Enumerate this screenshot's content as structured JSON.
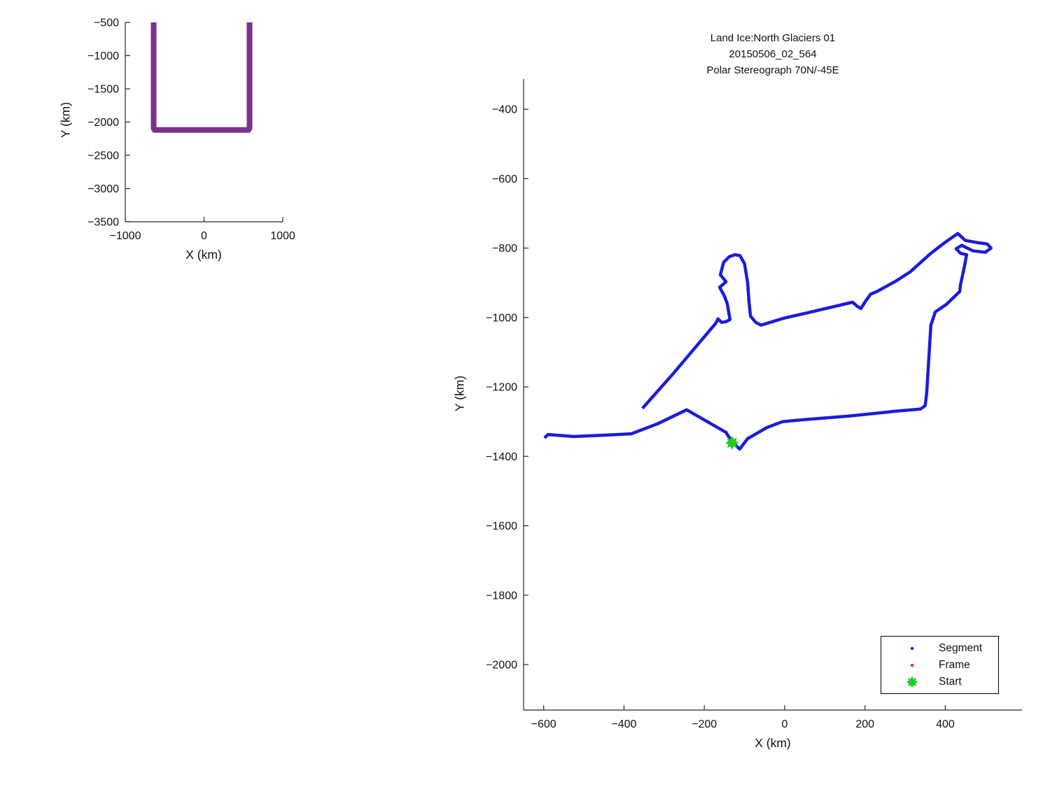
{
  "figure": {
    "background": "#ffffff",
    "spine_color": "#262626",
    "text_color": "#111111"
  },
  "chart_data": [
    {
      "id": "inset",
      "type": "line",
      "title": "",
      "xlabel": "X (km)",
      "ylabel": "Y (km)",
      "xlim": [
        -1000,
        1000
      ],
      "ylim": [
        -3500,
        -500
      ],
      "xticks": [
        -1000,
        0,
        1000
      ],
      "yticks": [
        -500,
        -1000,
        -1500,
        -2000,
        -2500,
        -3000,
        -3500
      ],
      "grid": false,
      "legend": null,
      "series": [
        {
          "name": "flight-track-overview",
          "color": "#7B2F8E",
          "line_width": 8,
          "points": [
            [
              -640,
              -500
            ],
            [
              -640,
              -2095
            ],
            [
              -629,
              -2119
            ],
            [
              564,
              -2119
            ],
            [
              578,
              -2093
            ],
            [
              578,
              -500
            ]
          ]
        }
      ]
    },
    {
      "id": "main",
      "type": "line",
      "title_lines": [
        "Land Ice:North Glaciers 01",
        "20150506_02_564",
        "Polar Stereograph 70N/-45E"
      ],
      "xlabel": "X (km)",
      "ylabel": "Y (km)",
      "xlim": [
        -650,
        591
      ],
      "ylim": [
        -2131,
        -313
      ],
      "xticks": [
        -600,
        -400,
        -200,
        0,
        200,
        400
      ],
      "yticks": [
        -400,
        -600,
        -800,
        -1000,
        -1200,
        -1400,
        -1600,
        -1800,
        -2000
      ],
      "grid": false,
      "legend": {
        "position": "southeast",
        "entries": [
          {
            "label": "Segment",
            "marker": "dot",
            "color": "#1C1CD8"
          },
          {
            "label": "Frame",
            "marker": "dot",
            "color": "#E82222"
          },
          {
            "label": "Start",
            "marker": "star",
            "color": "#1FCE1F"
          }
        ]
      },
      "series": [
        {
          "name": "segment-track",
          "color": "#1C1CD8",
          "line_width": 4.5,
          "points": [
            [
              -354,
              -1262
            ],
            [
              -277,
              -1161
            ],
            [
              -171,
              -1016
            ],
            [
              -166,
              -1004
            ],
            [
              -157,
              -1014
            ],
            [
              -146,
              -1012
            ],
            [
              -136,
              -1006
            ],
            [
              -143,
              -960
            ],
            [
              -150,
              -938
            ],
            [
              -162,
              -913
            ],
            [
              -146,
              -897
            ],
            [
              -160,
              -877
            ],
            [
              -152,
              -841
            ],
            [
              -138,
              -825
            ],
            [
              -124,
              -819
            ],
            [
              -111,
              -822
            ],
            [
              -100,
              -845
            ],
            [
              -92,
              -900
            ],
            [
              -89,
              -952
            ],
            [
              -85,
              -996
            ],
            [
              -72,
              -1014
            ],
            [
              -59,
              -1022
            ],
            [
              -2,
              -1002
            ],
            [
              51,
              -988
            ],
            [
              169,
              -956
            ],
            [
              181,
              -968
            ],
            [
              190,
              -974
            ],
            [
              201,
              -954
            ],
            [
              214,
              -933
            ],
            [
              230,
              -925
            ],
            [
              277,
              -895
            ],
            [
              312,
              -869
            ],
            [
              364,
              -815
            ],
            [
              399,
              -784
            ],
            [
              431,
              -758
            ],
            [
              450,
              -778
            ],
            [
              479,
              -784
            ],
            [
              504,
              -788
            ],
            [
              514,
              -800
            ],
            [
              500,
              -812
            ],
            [
              469,
              -808
            ],
            [
              441,
              -792
            ],
            [
              427,
              -802
            ],
            [
              438,
              -815
            ],
            [
              453,
              -819
            ],
            [
              448,
              -851
            ],
            [
              438,
              -905
            ],
            [
              436,
              -925
            ],
            [
              403,
              -962
            ],
            [
              375,
              -984
            ],
            [
              364,
              -1022
            ],
            [
              354,
              -1214
            ],
            [
              350,
              -1254
            ],
            [
              338,
              -1264
            ],
            [
              277,
              -1270
            ],
            [
              160,
              -1284
            ],
            [
              51,
              -1294
            ],
            [
              -5,
              -1300
            ],
            [
              -44,
              -1317
            ],
            [
              -92,
              -1349
            ],
            [
              -112,
              -1379
            ],
            [
              -131,
              -1359
            ],
            [
              -146,
              -1331
            ],
            [
              -244,
              -1266
            ],
            [
              -316,
              -1306
            ],
            [
              -382,
              -1335
            ],
            [
              -446,
              -1339
            ],
            [
              -525,
              -1343
            ],
            [
              -589,
              -1337
            ],
            [
              -598,
              -1347
            ]
          ]
        }
      ],
      "markers": [
        {
          "name": "start-marker",
          "shape": "star",
          "color": "#1FCE1F",
          "x": -131,
          "y": -1361,
          "size": 8.5
        }
      ]
    }
  ]
}
